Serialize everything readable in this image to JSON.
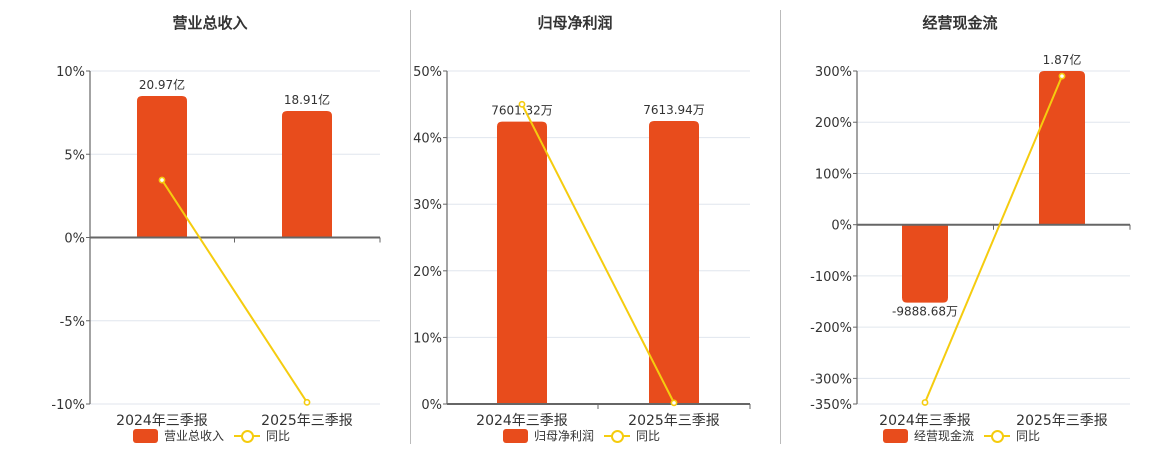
{
  "colors": {
    "bar": "#E84C1C",
    "line": "#F5CC0F",
    "grid": "#E0E6EE",
    "axis": "#666666"
  },
  "legend_yoy": "同比",
  "chart_data": [
    {
      "type": "bar+line",
      "title": "营业总收入",
      "categories": [
        "2024年三季报",
        "2025年三季报"
      ],
      "series": [
        {
          "name": "营业总收入",
          "type": "bar",
          "labels": [
            "20.97亿",
            "18.91亿"
          ],
          "values_yi": [
            20.97,
            18.91
          ]
        },
        {
          "name": "同比",
          "type": "line",
          "values": [
            3.45,
            -9.9
          ]
        }
      ],
      "y_axis": {
        "ticks": [
          "10%",
          "5%",
          "0%",
          "-5%",
          "-10%"
        ],
        "tick_values": [
          10,
          5,
          0,
          -5,
          -10
        ],
        "ylim": [
          -10,
          10
        ]
      },
      "bar_heights_in_axis_units": [
        8.5,
        7.6
      ]
    },
    {
      "type": "bar+line",
      "title": "归母净利润",
      "categories": [
        "2024年三季报",
        "2025年三季报"
      ],
      "series": [
        {
          "name": "归母净利润",
          "type": "bar",
          "labels": [
            "7601.32万",
            "7613.94万"
          ],
          "values_wan": [
            7601.32,
            7613.94
          ]
        },
        {
          "name": "同比",
          "type": "line",
          "values": [
            45.0,
            0.17
          ]
        }
      ],
      "y_axis": {
        "ticks": [
          "50%",
          "40%",
          "30%",
          "20%",
          "10%",
          "0%"
        ],
        "tick_values": [
          50,
          40,
          30,
          20,
          10,
          0
        ],
        "ylim": [
          0,
          50
        ]
      },
      "bar_heights_in_axis_units": [
        42.4,
        42.5
      ]
    },
    {
      "type": "bar+line",
      "title": "经营现金流",
      "categories": [
        "2024年三季报",
        "2025年三季报"
      ],
      "series": [
        {
          "name": "经营现金流",
          "type": "bar",
          "labels": [
            "-9888.68万",
            "1.87亿"
          ],
          "values_wan": [
            -9888.68,
            18700
          ]
        },
        {
          "name": "同比",
          "type": "line",
          "values": [
            -347,
            290
          ]
        }
      ],
      "y_axis": {
        "ticks": [
          "300%",
          "200%",
          "100%",
          "0%",
          "-100%",
          "-200%",
          "-300%",
          "-350%"
        ],
        "tick_values": [
          300,
          200,
          100,
          0,
          -100,
          -200,
          -300,
          -350
        ],
        "ylim": [
          -350,
          300
        ]
      },
      "bar_heights_in_axis_units": [
        -152,
        300
      ]
    }
  ]
}
